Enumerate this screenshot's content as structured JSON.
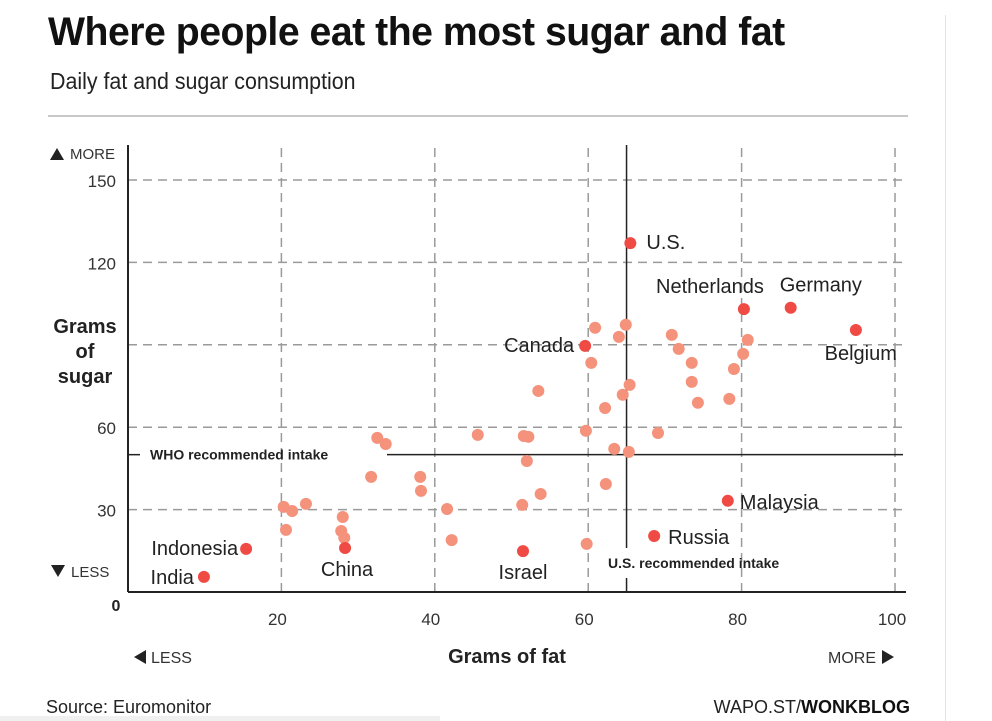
{
  "header": {
    "title": "Where people eat the most sugar and fat",
    "subtitle": "Daily fat and sugar consumption"
  },
  "footer": {
    "source": "Source: Euromonitor",
    "credit_prefix": "WAPO.ST/",
    "credit_bold": "WONKBLOG"
  },
  "colors": {
    "highlight": "#ef4a44",
    "other": "#f4927c",
    "grid": "#9a9a9a",
    "axis": "#222222"
  },
  "chart_data": {
    "type": "scatter",
    "title": "Where people eat the most sugar and fat",
    "subtitle": "Daily fat and sugar consumption",
    "xlabel": "Grams of fat",
    "ylabel": "Grams of sugar",
    "xlim": [
      0,
      100
    ],
    "ylim": [
      0,
      150
    ],
    "x_ticks": [
      20,
      40,
      60,
      80,
      100
    ],
    "y_ticks": [
      30,
      60,
      120,
      150
    ],
    "zero_label": "0",
    "y_grid_lines": [
      30,
      60,
      90,
      120,
      150
    ],
    "x_grid_lines": [
      20,
      40,
      60,
      80,
      100
    ],
    "grid": true,
    "x_direction_labels": {
      "less": "LESS",
      "more": "MORE"
    },
    "y_direction_labels": {
      "less": "LESS",
      "more": "MORE"
    },
    "reference_lines": [
      {
        "axis": "y",
        "value": 50,
        "label": "WHO recommended intake"
      },
      {
        "axis": "x",
        "value": 65,
        "label": "U.S. recommended intake"
      }
    ],
    "labeled_points": [
      {
        "name": "U.S.",
        "fat": 65.5,
        "sugar": 127
      },
      {
        "name": "Netherlands",
        "fat": 80.3,
        "sugar": 103
      },
      {
        "name": "Germany",
        "fat": 86.4,
        "sugar": 103.5
      },
      {
        "name": "Belgium",
        "fat": 94.9,
        "sugar": 95.4
      },
      {
        "name": "Canada",
        "fat": 59.6,
        "sugar": 89.6
      },
      {
        "name": "Malaysia",
        "fat": 78.2,
        "sugar": 33.2
      },
      {
        "name": "Russia",
        "fat": 68.6,
        "sugar": 20.4
      },
      {
        "name": "Israel",
        "fat": 51.5,
        "sugar": 14.9
      },
      {
        "name": "China",
        "fat": 28.3,
        "sugar": 16
      },
      {
        "name": "Indonesia",
        "fat": 15.4,
        "sugar": 15.7
      },
      {
        "name": "India",
        "fat": 9.9,
        "sugar": 5.5
      }
    ],
    "other_points": [
      [
        60.9,
        96.2
      ],
      [
        64.9,
        97.3
      ],
      [
        64.0,
        92.9
      ],
      [
        60.4,
        83.4
      ],
      [
        70.9,
        93.6
      ],
      [
        71.8,
        88.5
      ],
      [
        73.5,
        83.4
      ],
      [
        80.8,
        91.8
      ],
      [
        80.2,
        86.7
      ],
      [
        79.0,
        81.2
      ],
      [
        73.5,
        76.5
      ],
      [
        65.4,
        75.4
      ],
      [
        64.5,
        71.8
      ],
      [
        74.3,
        68.9
      ],
      [
        78.4,
        70.3
      ],
      [
        62.2,
        67.0
      ],
      [
        53.5,
        73.2
      ],
      [
        59.7,
        58.7
      ],
      [
        45.6,
        57.2
      ],
      [
        51.6,
        56.8
      ],
      [
        52.2,
        56.5
      ],
      [
        32.5,
        56.1
      ],
      [
        33.6,
        53.9
      ],
      [
        63.4,
        52.1
      ],
      [
        65.3,
        51.0
      ],
      [
        69.1,
        57.9
      ],
      [
        52.0,
        47.7
      ],
      [
        31.7,
        41.9
      ],
      [
        38.1,
        41.9
      ],
      [
        38.2,
        36.8
      ],
      [
        41.6,
        30.2
      ],
      [
        51.4,
        31.7
      ],
      [
        53.8,
        35.7
      ],
      [
        62.3,
        39.3
      ],
      [
        20.3,
        31.0
      ],
      [
        21.4,
        29.5
      ],
      [
        23.2,
        32.1
      ],
      [
        28.0,
        27.3
      ],
      [
        20.6,
        22.6
      ],
      [
        27.8,
        22.2
      ],
      [
        28.2,
        19.7
      ],
      [
        42.2,
        18.9
      ],
      [
        59.8,
        17.5
      ]
    ]
  }
}
